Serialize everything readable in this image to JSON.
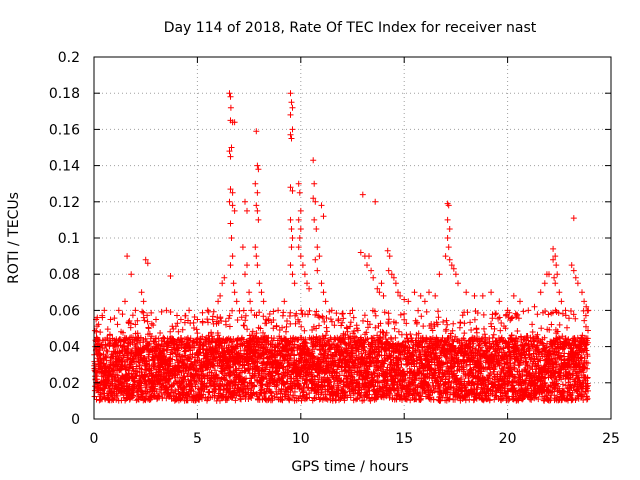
{
  "chart_data": {
    "type": "scatter",
    "title": "Day 114 of 2018, Rate Of TEC Index for receiver nast",
    "xlabel": "GPS time / hours",
    "ylabel": "ROTI / TECUs",
    "xlim": [
      0,
      25
    ],
    "ylim": [
      0,
      0.2
    ],
    "x_ticks": [
      0,
      5,
      10,
      15,
      20,
      25
    ],
    "y_ticks": [
      0,
      0.02,
      0.04,
      0.06,
      0.08,
      0.1,
      0.12,
      0.14,
      0.16,
      0.18,
      0.2
    ],
    "x_tick_labels": [
      "0",
      "5",
      "10",
      "15",
      "20",
      "25"
    ],
    "y_tick_labels": [
      "0",
      "0.02",
      "0.04",
      "0.06",
      "0.08",
      "0.1",
      "0.12",
      "0.14",
      "0.16",
      "0.18",
      "0.2"
    ],
    "grid": true,
    "marker": "+",
    "color": "#ff0000",
    "x_data_range": [
      0,
      23.9
    ],
    "background_band": {
      "x_step_hours": 0.01,
      "typical_range": [
        0.01,
        0.045
      ],
      "moderate_max": 0.06
    },
    "series": [
      {
        "name": "ROTI",
        "points": [
          [
            0.1,
            0.055
          ],
          [
            0.3,
            0.048
          ],
          [
            0.5,
            0.06
          ],
          [
            0.8,
            0.055
          ],
          [
            1.2,
            0.06
          ],
          [
            1.5,
            0.065
          ],
          [
            1.6,
            0.09
          ],
          [
            1.8,
            0.08
          ],
          [
            2.0,
            0.06
          ],
          [
            2.3,
            0.07
          ],
          [
            2.4,
            0.065
          ],
          [
            2.6,
            0.086
          ],
          [
            2.5,
            0.088
          ],
          [
            3.0,
            0.055
          ],
          [
            3.5,
            0.06
          ],
          [
            3.7,
            0.079
          ],
          [
            4.2,
            0.055
          ],
          [
            4.6,
            0.06
          ],
          [
            5.0,
            0.055
          ],
          [
            5.5,
            0.06
          ],
          [
            6.0,
            0.065
          ],
          [
            6.1,
            0.068
          ],
          [
            6.2,
            0.075
          ],
          [
            6.3,
            0.078
          ],
          [
            6.55,
            0.18
          ],
          [
            6.6,
            0.178
          ],
          [
            6.62,
            0.172
          ],
          [
            6.6,
            0.165
          ],
          [
            6.7,
            0.164
          ],
          [
            6.8,
            0.164
          ],
          [
            6.55,
            0.148
          ],
          [
            6.6,
            0.145
          ],
          [
            6.65,
            0.15
          ],
          [
            6.6,
            0.127
          ],
          [
            6.7,
            0.125
          ],
          [
            6.55,
            0.12
          ],
          [
            6.7,
            0.118
          ],
          [
            6.8,
            0.115
          ],
          [
            6.6,
            0.108
          ],
          [
            6.65,
            0.1
          ],
          [
            6.7,
            0.09
          ],
          [
            6.6,
            0.085
          ],
          [
            6.75,
            0.075
          ],
          [
            6.8,
            0.07
          ],
          [
            6.9,
            0.065
          ],
          [
            7.2,
            0.095
          ],
          [
            7.3,
            0.12
          ],
          [
            7.4,
            0.115
          ],
          [
            7.4,
            0.085
          ],
          [
            7.3,
            0.08
          ],
          [
            7.5,
            0.07
          ],
          [
            7.55,
            0.065
          ],
          [
            7.6,
            0.06
          ],
          [
            7.8,
            0.13
          ],
          [
            7.85,
            0.118
          ],
          [
            7.9,
            0.115
          ],
          [
            7.95,
            0.11
          ],
          [
            7.8,
            0.095
          ],
          [
            7.85,
            0.09
          ],
          [
            7.9,
            0.085
          ],
          [
            7.85,
            0.159
          ],
          [
            7.9,
            0.14
          ],
          [
            7.95,
            0.138
          ],
          [
            7.9,
            0.125
          ],
          [
            8.0,
            0.075
          ],
          [
            8.1,
            0.07
          ],
          [
            8.2,
            0.065
          ],
          [
            8.5,
            0.058
          ],
          [
            8.9,
            0.06
          ],
          [
            9.2,
            0.065
          ],
          [
            9.5,
            0.18
          ],
          [
            9.55,
            0.175
          ],
          [
            9.6,
            0.172
          ],
          [
            9.5,
            0.168
          ],
          [
            9.6,
            0.16
          ],
          [
            9.5,
            0.157
          ],
          [
            9.55,
            0.155
          ],
          [
            9.5,
            0.128
          ],
          [
            9.6,
            0.126
          ],
          [
            9.5,
            0.11
          ],
          [
            9.55,
            0.105
          ],
          [
            9.6,
            0.1
          ],
          [
            9.55,
            0.095
          ],
          [
            9.5,
            0.085
          ],
          [
            9.6,
            0.08
          ],
          [
            9.7,
            0.075
          ],
          [
            9.9,
            0.13
          ],
          [
            9.95,
            0.125
          ],
          [
            10.0,
            0.115
          ],
          [
            9.9,
            0.11
          ],
          [
            10.0,
            0.105
          ],
          [
            9.95,
            0.1
          ],
          [
            9.9,
            0.095
          ],
          [
            10.0,
            0.09
          ],
          [
            10.1,
            0.085
          ],
          [
            10.2,
            0.08
          ],
          [
            10.3,
            0.075
          ],
          [
            10.4,
            0.072
          ],
          [
            10.6,
            0.143
          ],
          [
            10.65,
            0.13
          ],
          [
            10.6,
            0.122
          ],
          [
            10.7,
            0.12
          ],
          [
            10.65,
            0.11
          ],
          [
            10.75,
            0.105
          ],
          [
            10.8,
            0.095
          ],
          [
            10.9,
            0.09
          ],
          [
            10.7,
            0.088
          ],
          [
            10.8,
            0.082
          ],
          [
            11.0,
            0.075
          ],
          [
            11.1,
            0.07
          ],
          [
            11.2,
            0.065
          ],
          [
            11.0,
            0.118
          ],
          [
            11.1,
            0.112
          ],
          [
            11.5,
            0.06
          ],
          [
            12.0,
            0.058
          ],
          [
            12.5,
            0.06
          ],
          [
            12.9,
            0.092
          ],
          [
            13.0,
            0.124
          ],
          [
            13.1,
            0.09
          ],
          [
            13.2,
            0.085
          ],
          [
            13.3,
            0.09
          ],
          [
            13.4,
            0.082
          ],
          [
            13.5,
            0.078
          ],
          [
            13.6,
            0.12
          ],
          [
            13.7,
            0.072
          ],
          [
            13.8,
            0.07
          ],
          [
            13.9,
            0.075
          ],
          [
            14.0,
            0.068
          ],
          [
            14.2,
            0.093
          ],
          [
            14.3,
            0.09
          ],
          [
            14.25,
            0.082
          ],
          [
            14.4,
            0.08
          ],
          [
            14.5,
            0.078
          ],
          [
            14.6,
            0.075
          ],
          [
            14.7,
            0.07
          ],
          [
            14.8,
            0.068
          ],
          [
            15.0,
            0.066
          ],
          [
            15.2,
            0.065
          ],
          [
            15.5,
            0.07
          ],
          [
            15.8,
            0.068
          ],
          [
            16.0,
            0.065
          ],
          [
            16.2,
            0.07
          ],
          [
            16.5,
            0.068
          ],
          [
            16.7,
            0.08
          ],
          [
            17.1,
            0.119
          ],
          [
            17.15,
            0.118
          ],
          [
            17.1,
            0.11
          ],
          [
            17.2,
            0.105
          ],
          [
            17.1,
            0.1
          ],
          [
            17.15,
            0.095
          ],
          [
            17.0,
            0.09
          ],
          [
            17.2,
            0.088
          ],
          [
            17.3,
            0.085
          ],
          [
            17.4,
            0.083
          ],
          [
            17.5,
            0.08
          ],
          [
            17.6,
            0.075
          ],
          [
            18.0,
            0.07
          ],
          [
            18.4,
            0.068
          ],
          [
            18.8,
            0.068
          ],
          [
            19.2,
            0.07
          ],
          [
            19.6,
            0.065
          ],
          [
            20.0,
            0.06
          ],
          [
            20.3,
            0.068
          ],
          [
            20.6,
            0.065
          ],
          [
            21.0,
            0.06
          ],
          [
            21.3,
            0.062
          ],
          [
            21.6,
            0.07
          ],
          [
            21.8,
            0.075
          ],
          [
            21.9,
            0.08
          ],
          [
            22.0,
            0.08
          ],
          [
            22.2,
            0.094
          ],
          [
            22.3,
            0.09
          ],
          [
            22.2,
            0.088
          ],
          [
            22.35,
            0.085
          ],
          [
            22.4,
            0.08
          ],
          [
            22.25,
            0.078
          ],
          [
            22.3,
            0.075
          ],
          [
            22.5,
            0.07
          ],
          [
            22.6,
            0.065
          ],
          [
            22.8,
            0.06
          ],
          [
            23.2,
            0.111
          ],
          [
            23.1,
            0.085
          ],
          [
            23.2,
            0.082
          ],
          [
            23.3,
            0.078
          ],
          [
            23.4,
            0.075
          ],
          [
            23.6,
            0.07
          ],
          [
            23.7,
            0.065
          ],
          [
            23.8,
            0.062
          ],
          [
            23.9,
            0.06
          ]
        ]
      }
    ]
  }
}
